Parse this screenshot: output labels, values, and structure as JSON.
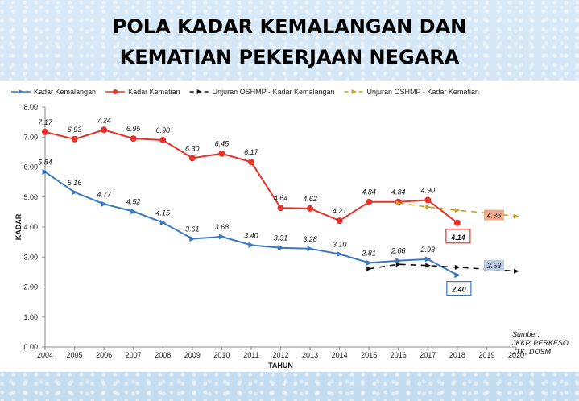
{
  "title": {
    "line1": "POLA KADAR KEMALANGAN DAN",
    "line2": "KEMATIAN PEKERJAAN NEGARA"
  },
  "source": [
    "Sumber:",
    "JKKP, PERKESO,",
    "JTK, DOSM"
  ],
  "colors": {
    "kemalangan": "#3b78c0",
    "kematian": "#e8312a",
    "unjuran_kemalangan": "#111111",
    "unjuran_kematian": "#c9a22a",
    "box_kematian": "#f4a986",
    "box_kemalangan": "#b9cde6"
  },
  "chart_data": {
    "type": "line",
    "xlabel": "TAHUN",
    "ylabel": "KADAR",
    "x": [
      2004,
      2005,
      2006,
      2007,
      2008,
      2009,
      2010,
      2011,
      2012,
      2013,
      2014,
      2015,
      2016,
      2017,
      2018,
      2019,
      2020
    ],
    "ylim": [
      0,
      8
    ],
    "yticks": [
      "0.00",
      "1.00",
      "2.00",
      "3.00",
      "4.00",
      "5.00",
      "6.00",
      "7.00",
      "8.00"
    ],
    "legend_position": "top",
    "series": [
      {
        "name": "Kadar Kemalangan",
        "style": "solid",
        "x": [
          2004,
          2005,
          2006,
          2007,
          2008,
          2009,
          2010,
          2011,
          2012,
          2013,
          2014,
          2015,
          2016,
          2017,
          2018
        ],
        "values": [
          5.84,
          5.16,
          4.77,
          4.52,
          4.15,
          3.61,
          3.68,
          3.4,
          3.31,
          3.28,
          3.1,
          2.81,
          2.88,
          2.93,
          2.4
        ],
        "labels": [
          "5.84",
          "5.16",
          "4.77",
          "4.52",
          "4.15",
          "3.61",
          "3.68",
          "3.40",
          "3.31",
          "3.28",
          "3.10",
          "2.81",
          "2.88",
          "2.93",
          "2.40"
        ]
      },
      {
        "name": "Kadar Kematian",
        "style": "solid",
        "x": [
          2004,
          2005,
          2006,
          2007,
          2008,
          2009,
          2010,
          2011,
          2012,
          2013,
          2014,
          2015,
          2016,
          2017,
          2018
        ],
        "values": [
          7.17,
          6.93,
          7.24,
          6.95,
          6.9,
          6.3,
          6.45,
          6.17,
          4.64,
          4.62,
          4.21,
          4.84,
          4.84,
          4.9,
          4.14
        ],
        "labels": [
          "7.17",
          "6.93",
          "7.24",
          "6.95",
          "6.90",
          "6.30",
          "6.45",
          "6.17",
          "4.64",
          "4.62",
          "4.21",
          "4.84",
          "4.84",
          "4.90",
          "4.14"
        ]
      },
      {
        "name": "Unjuran OSHMP - Kadar Kemalangan",
        "style": "dashed",
        "x": [
          2015,
          2016,
          2017,
          2018,
          2019,
          2020
        ],
        "values": [
          2.61,
          2.76,
          2.72,
          2.66,
          2.6,
          2.53
        ],
        "labels": [
          "",
          "",
          "",
          "",
          "",
          "2.53"
        ]
      },
      {
        "name": "Unjuran OSHMP - Kadar Kematian",
        "style": "dashed",
        "x": [
          2016,
          2017,
          2018,
          2019,
          2020
        ],
        "values": [
          4.8,
          4.67,
          4.56,
          4.47,
          4.36
        ],
        "labels": [
          "",
          "",
          "",
          "",
          "4.36"
        ]
      }
    ]
  }
}
